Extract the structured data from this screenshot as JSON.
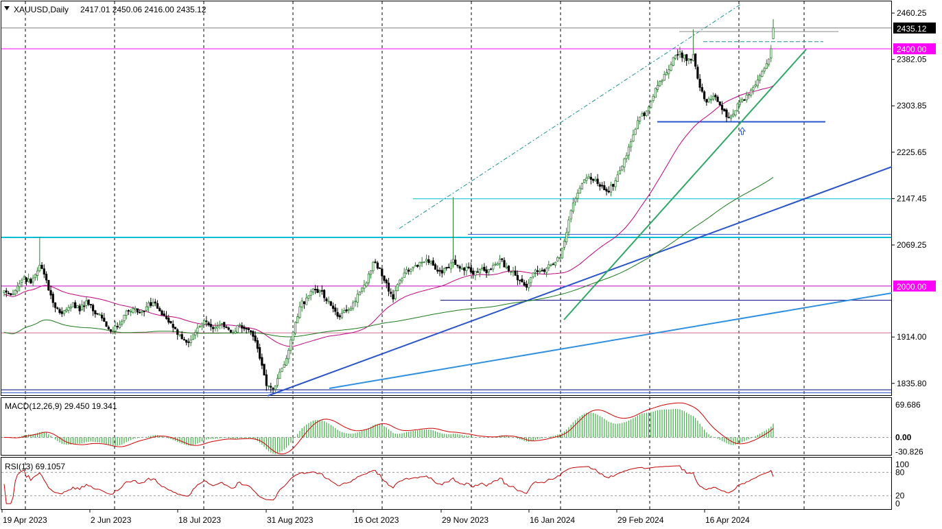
{
  "header": {
    "symbol": "XAUUSD,Daily",
    "ohlc": "2417.01 2450.06 2416.00 2435.12"
  },
  "macd": {
    "title": "MACD(12,26,9) 29.450 19.341"
  },
  "rsi": {
    "title": "RSI(13) 69.1057"
  },
  "colors": {
    "bull": "#2e7d32",
    "bear": "#000000",
    "ma_magenta": "#c0007f",
    "ma_green": "#1b7a1b",
    "cyan": "#00bcd4",
    "blue": "#2a55c8",
    "lightblue": "#2f8fe0",
    "magenta": "#e000e0",
    "macd_hist": "#3cb043",
    "macd_signal": "#d00000",
    "rsi_line": "#c00000"
  },
  "chart_data": [
    {
      "type": "candlestick",
      "symbol": "XAUUSD",
      "timeframe": "Daily",
      "last_ohlc": {
        "open": 2417.01,
        "high": 2450.06,
        "low": 2416.0,
        "close": 2435.12
      },
      "y_ticks": [
        "2460.25",
        "2382.05",
        "2303.85",
        "2225.65",
        "2147.45",
        "2069.25",
        "1914.00",
        "1835.80"
      ],
      "ylim": [
        1817,
        2480
      ],
      "x_ticks": [
        "19 Apr 2023",
        "2 Jun 2023",
        "18 Jul 2023",
        "31 Aug 2023",
        "16 Oct 2023",
        "29 Nov 2023",
        "16 Jan 2024",
        "29 Feb 2024",
        "16 Apr 2024"
      ],
      "price_labels": [
        {
          "text": "2435.12",
          "value": 2435.12,
          "bg": "#000000",
          "fg": "#ffffff"
        },
        {
          "text": "2400.00",
          "value": 2400.0,
          "bg": "#ff00ff",
          "fg": "#ffffff"
        },
        {
          "text": "2000.00",
          "value": 2000.0,
          "bg": "#ff00ff",
          "fg": "#ffffff"
        }
      ],
      "close_anchors": [
        [
          0,
          1992
        ],
        [
          3,
          1985
        ],
        [
          6,
          2000
        ],
        [
          9,
          2015
        ],
        [
          12,
          2005
        ],
        [
          16,
          2035
        ],
        [
          19,
          2010
        ],
        [
          22,
          1972
        ],
        [
          25,
          1955
        ],
        [
          28,
          1960
        ],
        [
          31,
          1972
        ],
        [
          34,
          1958
        ],
        [
          37,
          1975
        ],
        [
          40,
          1958
        ],
        [
          43,
          1952
        ],
        [
          46,
          1932
        ],
        [
          49,
          1924
        ],
        [
          52,
          1935
        ],
        [
          55,
          1958
        ],
        [
          58,
          1962
        ],
        [
          61,
          1955
        ],
        [
          64,
          1965
        ],
        [
          67,
          1972
        ],
        [
          70,
          1958
        ],
        [
          73,
          1945
        ],
        [
          76,
          1930
        ],
        [
          79,
          1918
        ],
        [
          82,
          1905
        ],
        [
          85,
          1918
        ],
        [
          88,
          1932
        ],
        [
          91,
          1940
        ],
        [
          94,
          1928
        ],
        [
          97,
          1935
        ],
        [
          100,
          1930
        ],
        [
          103,
          1922
        ],
        [
          106,
          1935
        ],
        [
          109,
          1928
        ],
        [
          112,
          1915
        ],
        [
          115,
          1878
        ],
        [
          118,
          1832
        ],
        [
          121,
          1827
        ],
        [
          124,
          1855
        ],
        [
          127,
          1878
        ],
        [
          130,
          1922
        ],
        [
          133,
          1965
        ],
        [
          136,
          1980
        ],
        [
          139,
          1995
        ],
        [
          142,
          1992
        ],
        [
          145,
          1975
        ],
        [
          148,
          1962
        ],
        [
          151,
          1948
        ],
        [
          154,
          1958
        ],
        [
          157,
          1972
        ],
        [
          160,
          1990
        ],
        [
          163,
          2005
        ],
        [
          166,
          2040
        ],
        [
          169,
          2030
        ],
        [
          172,
          2005
        ],
        [
          175,
          1978
        ],
        [
          178,
          2010
        ],
        [
          181,
          2028
        ],
        [
          184,
          2032
        ],
        [
          187,
          2040
        ],
        [
          190,
          2045
        ],
        [
          193,
          2035
        ],
        [
          196,
          2025
        ],
        [
          199,
          2030
        ],
        [
          202,
          2045
        ],
        [
          205,
          2030
        ],
        [
          208,
          2032
        ],
        [
          211,
          2020
        ],
        [
          214,
          2028
        ],
        [
          217,
          2022
        ],
        [
          220,
          2035
        ],
        [
          223,
          2045
        ],
        [
          226,
          2032
        ],
        [
          229,
          2025
        ],
        [
          232,
          2010
        ],
        [
          235,
          1998
        ],
        [
          238,
          2022
        ],
        [
          241,
          2025
        ],
        [
          244,
          2030
        ],
        [
          247,
          2036
        ],
        [
          250,
          2048
        ],
        [
          253,
          2090
        ],
        [
          256,
          2140
        ],
        [
          259,
          2165
        ],
        [
          262,
          2182
        ],
        [
          265,
          2178
        ],
        [
          268,
          2168
        ],
        [
          271,
          2160
        ],
        [
          274,
          2168
        ],
        [
          277,
          2195
        ],
        [
          280,
          2220
        ],
        [
          283,
          2255
        ],
        [
          286,
          2285
        ],
        [
          289,
          2295
        ],
        [
          292,
          2320
        ],
        [
          295,
          2345
        ],
        [
          298,
          2360
        ],
        [
          301,
          2385
        ],
        [
          304,
          2395
        ],
        [
          307,
          2380
        ],
        [
          310,
          2390
        ],
        [
          313,
          2335
        ],
        [
          316,
          2310
        ],
        [
          319,
          2320
        ],
        [
          322,
          2305
        ],
        [
          325,
          2285
        ],
        [
          328,
          2290
        ],
        [
          331,
          2310
        ],
        [
          334,
          2322
        ],
        [
          337,
          2335
        ],
        [
          340,
          2355
        ],
        [
          343,
          2375
        ],
        [
          345,
          2400
        ],
        [
          346,
          2435.12
        ]
      ],
      "lines": [
        {
          "kind": "horizontal",
          "value": 2435.12,
          "color": "#808080"
        },
        {
          "kind": "horizontal",
          "value": 2400.0,
          "color": "#ff00ff"
        },
        {
          "kind": "horizontal",
          "value": 2082,
          "color": "#00bcd4"
        },
        {
          "kind": "horizontal",
          "value": 2000.0,
          "color": "#c000c0"
        },
        {
          "kind": "horizontal",
          "value": 1921,
          "color": "#cc6688"
        },
        {
          "kind": "horizontal",
          "value": 1976,
          "color": "#000080"
        },
        {
          "kind": "horizontal",
          "value": 2277,
          "color": "#2a55c8"
        },
        {
          "kind": "horizontal",
          "value": 2147,
          "color": "#00bcd4"
        },
        {
          "kind": "horizontal",
          "value": 2087,
          "color": "#2a55c8"
        },
        {
          "kind": "horizontal",
          "value": 1825,
          "color": "#000080"
        },
        {
          "kind": "horizontal",
          "value": 1820,
          "color": "#2a55c8"
        }
      ]
    },
    {
      "type": "bar",
      "name": "MACD(12,26,9)",
      "main": 29.45,
      "signal": 19.341,
      "y_ticks": [
        "69.686",
        "0.00",
        "-30.826"
      ],
      "ylim": [
        -37,
        80
      ]
    },
    {
      "type": "line",
      "name": "RSI(13)",
      "value": 69.1057,
      "y_ticks": [
        "100",
        "80",
        "20",
        "0"
      ],
      "ylim": [
        0,
        100
      ]
    }
  ]
}
